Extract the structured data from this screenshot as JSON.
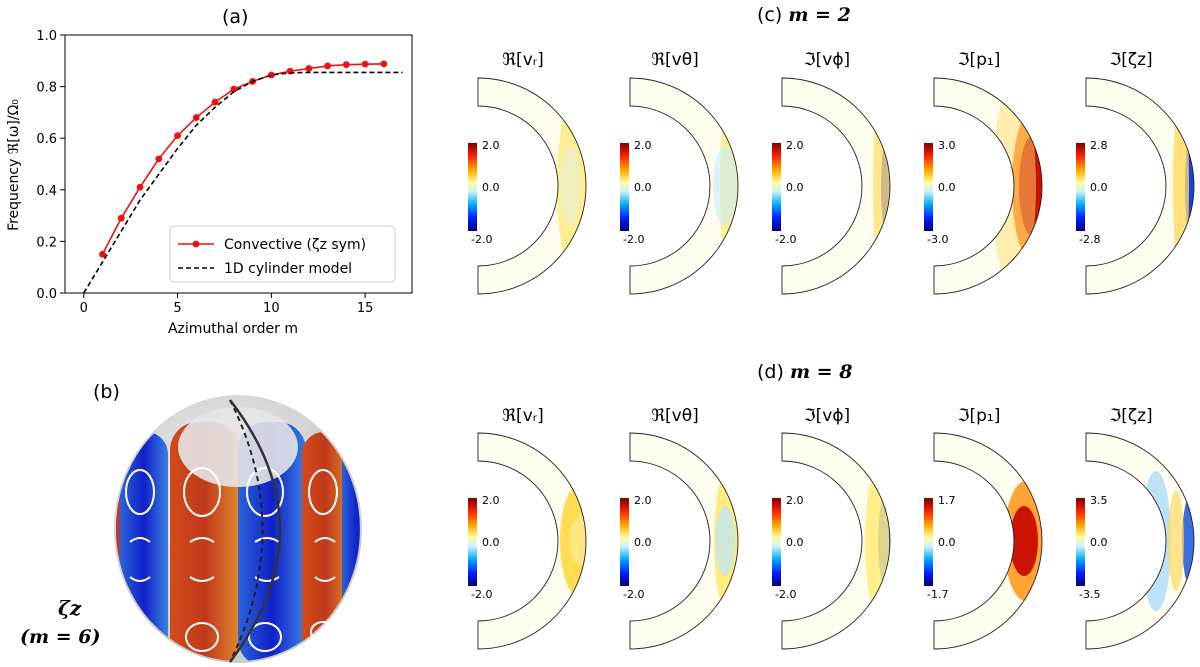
{
  "panel_a": {
    "title": "(a)",
    "chart_data": {
      "type": "line",
      "xlabel": "Azimuthal order m",
      "ylabel": "Frequency ℜ[ω]/Ω₀",
      "xlim": [
        -1,
        17.5
      ],
      "ylim": [
        0,
        1.0
      ],
      "xticks": [
        "0",
        "5",
        "10",
        "15"
      ],
      "yticks": [
        "0.0",
        "0.2",
        "0.4",
        "0.6",
        "0.8",
        "1.0"
      ],
      "legend_position": "lower-right",
      "series": [
        {
          "name": "Convective (ζz sym)",
          "color": "#ee1111",
          "style": "solid-with-markers",
          "x": [
            1,
            2,
            3,
            4,
            5,
            6,
            7,
            8,
            9,
            10,
            11,
            12,
            13,
            14,
            15,
            16
          ],
          "y": [
            0.15,
            0.29,
            0.41,
            0.52,
            0.61,
            0.68,
            0.74,
            0.79,
            0.82,
            0.845,
            0.86,
            0.87,
            0.88,
            0.885,
            0.887,
            0.888
          ]
        },
        {
          "name": "1D cylinder model",
          "color": "#000000",
          "style": "dashed",
          "x": [
            0,
            1,
            2,
            3,
            4,
            5,
            6,
            7,
            8,
            9,
            10,
            11,
            12,
            13,
            14,
            15,
            16,
            17
          ],
          "y": [
            0.0,
            0.12,
            0.24,
            0.36,
            0.46,
            0.56,
            0.65,
            0.72,
            0.78,
            0.82,
            0.845,
            0.853,
            0.855,
            0.855,
            0.855,
            0.855,
            0.855,
            0.855
          ]
        }
      ]
    }
  },
  "panel_b": {
    "title": "(b)",
    "label_var": "ζz",
    "label_m": "(m = 6)"
  },
  "panel_c": {
    "title": "(c)",
    "m_label": "m = 2",
    "subplots": [
      {
        "label": "ℜ[vᵣ]",
        "cb_max": "2.0",
        "cb_mid": "0.0",
        "cb_min": "-2.0"
      },
      {
        "label": "ℜ[vθ]",
        "cb_max": "2.0",
        "cb_mid": "0.0",
        "cb_min": "-2.0"
      },
      {
        "label": "ℑ[vϕ]",
        "cb_max": "2.0",
        "cb_mid": "0.0",
        "cb_min": "-2.0"
      },
      {
        "label": "ℑ[p₁]",
        "cb_max": "3.0",
        "cb_mid": "0.0",
        "cb_min": "-3.0"
      },
      {
        "label": "ℑ[ζz]",
        "cb_max": "2.8",
        "cb_mid": "0.0",
        "cb_min": "-2.8"
      }
    ]
  },
  "panel_d": {
    "title": "(d)",
    "m_label": "m = 8",
    "subplots": [
      {
        "label": "ℜ[vᵣ]",
        "cb_max": "2.0",
        "cb_mid": "0.0",
        "cb_min": "-2.0"
      },
      {
        "label": "ℜ[vθ]",
        "cb_max": "2.0",
        "cb_mid": "0.0",
        "cb_min": "-2.0"
      },
      {
        "label": "ℑ[vϕ]",
        "cb_max": "2.0",
        "cb_mid": "0.0",
        "cb_min": "-2.0"
      },
      {
        "label": "ℑ[p₁]",
        "cb_max": "1.7",
        "cb_mid": "0.0",
        "cb_min": "-1.7"
      },
      {
        "label": "ℑ[ζz]",
        "cb_max": "3.5",
        "cb_mid": "0.0",
        "cb_min": "-3.5"
      }
    ]
  },
  "colors": {
    "jet_colormap": [
      "#00007f",
      "#0000ff",
      "#00bfff",
      "#dff7ff",
      "#fffde0",
      "#ffee44",
      "#ff6600",
      "#cc0000",
      "#7f0000"
    ]
  }
}
